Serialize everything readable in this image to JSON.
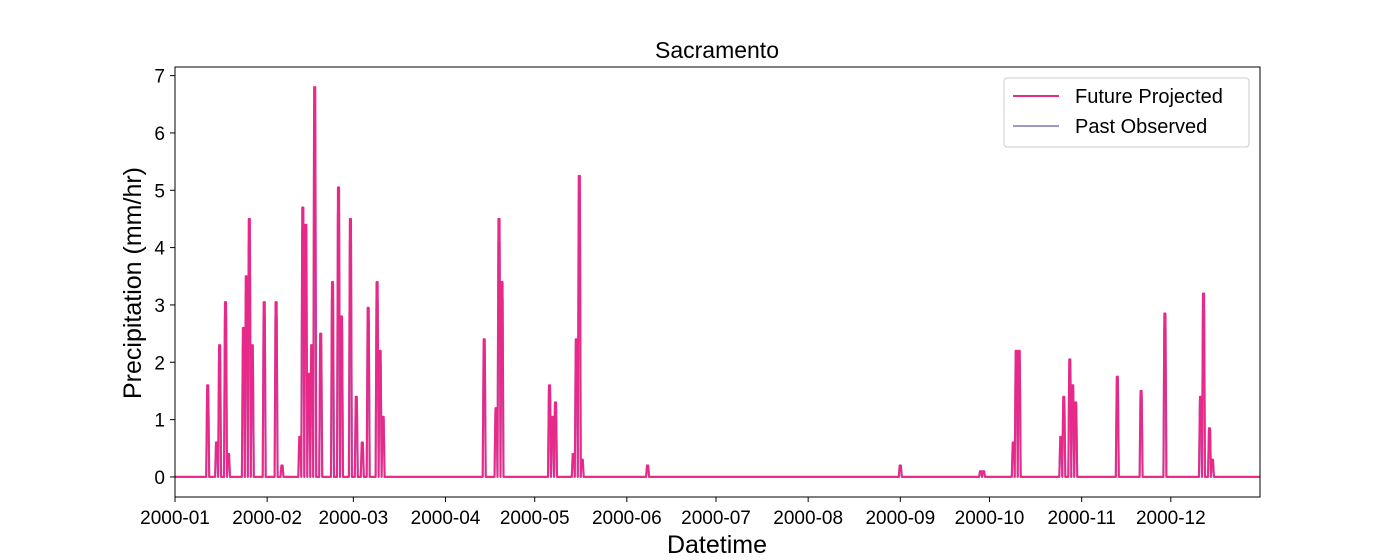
{
  "chart_data": {
    "type": "line",
    "title": "Sacramento",
    "xlabel": "Datetime",
    "ylabel": "Precipitation (mm/hr)",
    "x_range": [
      "2000-01-01",
      "2000-12-31"
    ],
    "ylim": [
      -0.35,
      7.15
    ],
    "yticks": [
      0,
      1,
      2,
      3,
      4,
      5,
      6,
      7
    ],
    "xtick_labels": [
      "2000-01",
      "2000-02",
      "2000-03",
      "2000-04",
      "2000-05",
      "2000-06",
      "2000-07",
      "2000-08",
      "2000-09",
      "2000-10",
      "2000-11",
      "2000-12"
    ],
    "legend_position": "top-right",
    "grid": false,
    "series": [
      {
        "name": "Future Projected",
        "color": "#e7298a",
        "points": [
          [
            "2000-01-12",
            1.6
          ],
          [
            "2000-01-15",
            0.6
          ],
          [
            "2000-01-16",
            2.3
          ],
          [
            "2000-01-18",
            3.05
          ],
          [
            "2000-01-19",
            0.4
          ],
          [
            "2000-01-24",
            2.6
          ],
          [
            "2000-01-25",
            3.5
          ],
          [
            "2000-01-26",
            4.5
          ],
          [
            "2000-01-27",
            2.3
          ],
          [
            "2000-01-31",
            3.05
          ],
          [
            "2000-02-04",
            3.05
          ],
          [
            "2000-02-06",
            0.2
          ],
          [
            "2000-02-12",
            0.7
          ],
          [
            "2000-02-13",
            4.7
          ],
          [
            "2000-02-14",
            4.4
          ],
          [
            "2000-02-15",
            1.8
          ],
          [
            "2000-02-16",
            2.3
          ],
          [
            "2000-02-17",
            6.8
          ],
          [
            "2000-02-19",
            2.5
          ],
          [
            "2000-02-23",
            3.4
          ],
          [
            "2000-02-25",
            5.05
          ],
          [
            "2000-02-26",
            2.8
          ],
          [
            "2000-02-29",
            4.5
          ],
          [
            "2000-03-02",
            1.4
          ],
          [
            "2000-03-04",
            0.6
          ],
          [
            "2000-03-06",
            2.95
          ],
          [
            "2000-03-09",
            3.4
          ],
          [
            "2000-03-10",
            2.2
          ],
          [
            "2000-03-11",
            1.05
          ],
          [
            "2000-04-14",
            2.4
          ],
          [
            "2000-04-18",
            1.2
          ],
          [
            "2000-04-19",
            4.5
          ],
          [
            "2000-04-20",
            3.4
          ],
          [
            "2000-05-06",
            1.6
          ],
          [
            "2000-05-07",
            1.05
          ],
          [
            "2000-05-08",
            1.3
          ],
          [
            "2000-05-14",
            0.4
          ],
          [
            "2000-05-15",
            2.4
          ],
          [
            "2000-05-16",
            5.25
          ],
          [
            "2000-05-17",
            0.3
          ],
          [
            "2000-06-08",
            0.2
          ],
          [
            "2000-09-01",
            0.2
          ],
          [
            "2000-09-28",
            0.1
          ],
          [
            "2000-09-29",
            0.1
          ],
          [
            "2000-10-09",
            0.6
          ],
          [
            "2000-10-10",
            2.2
          ],
          [
            "2000-10-11",
            2.2
          ],
          [
            "2000-10-25",
            0.7
          ],
          [
            "2000-10-26",
            1.4
          ],
          [
            "2000-10-28",
            2.05
          ],
          [
            "2000-10-29",
            1.6
          ],
          [
            "2000-10-30",
            1.3
          ],
          [
            "2000-11-13",
            1.75
          ],
          [
            "2000-11-21",
            1.5
          ],
          [
            "2000-11-29",
            2.85
          ],
          [
            "2000-12-11",
            1.4
          ],
          [
            "2000-12-12",
            3.2
          ],
          [
            "2000-12-14",
            0.85
          ],
          [
            "2000-12-15",
            0.3
          ]
        ]
      },
      {
        "name": "Past Observed",
        "color": "#9e9ac8",
        "points": [
          [
            "2000-01-12",
            1.4
          ],
          [
            "2000-01-15",
            0.6
          ],
          [
            "2000-01-16",
            2.0
          ],
          [
            "2000-01-18",
            2.8
          ],
          [
            "2000-01-19",
            0.4
          ],
          [
            "2000-01-24",
            2.3
          ],
          [
            "2000-01-25",
            3.2
          ],
          [
            "2000-01-26",
            4.1
          ],
          [
            "2000-01-27",
            2.1
          ],
          [
            "2000-01-31",
            2.8
          ],
          [
            "2000-02-04",
            2.8
          ],
          [
            "2000-02-06",
            0.2
          ],
          [
            "2000-02-12",
            0.6
          ],
          [
            "2000-02-13",
            4.3
          ],
          [
            "2000-02-14",
            4.0
          ],
          [
            "2000-02-15",
            1.7
          ],
          [
            "2000-02-16",
            2.1
          ],
          [
            "2000-02-17",
            6.2
          ],
          [
            "2000-02-19",
            2.3
          ],
          [
            "2000-02-23",
            3.1
          ],
          [
            "2000-02-25",
            4.6
          ],
          [
            "2000-02-26",
            2.6
          ],
          [
            "2000-02-29",
            4.1
          ],
          [
            "2000-03-02",
            1.3
          ],
          [
            "2000-03-04",
            0.6
          ],
          [
            "2000-03-06",
            2.7
          ],
          [
            "2000-03-09",
            3.1
          ],
          [
            "2000-03-10",
            2.0
          ],
          [
            "2000-03-11",
            1.0
          ],
          [
            "2000-04-14",
            2.2
          ],
          [
            "2000-04-18",
            1.1
          ],
          [
            "2000-04-19",
            4.1
          ],
          [
            "2000-04-20",
            3.1
          ],
          [
            "2000-05-06",
            1.5
          ],
          [
            "2000-05-07",
            1.0
          ],
          [
            "2000-05-08",
            1.2
          ],
          [
            "2000-05-14",
            0.4
          ],
          [
            "2000-05-15",
            2.2
          ],
          [
            "2000-05-16",
            4.8
          ],
          [
            "2000-05-17",
            0.3
          ],
          [
            "2000-06-08",
            0.2
          ],
          [
            "2000-09-01",
            0.2
          ],
          [
            "2000-09-28",
            0.1
          ],
          [
            "2000-09-29",
            0.1
          ],
          [
            "2000-10-09",
            0.6
          ],
          [
            "2000-10-10",
            2.0
          ],
          [
            "2000-10-11",
            2.0
          ],
          [
            "2000-10-25",
            0.6
          ],
          [
            "2000-10-26",
            1.3
          ],
          [
            "2000-10-28",
            1.9
          ],
          [
            "2000-10-29",
            1.5
          ],
          [
            "2000-10-30",
            1.2
          ],
          [
            "2000-11-13",
            1.6
          ],
          [
            "2000-11-21",
            1.4
          ],
          [
            "2000-11-29",
            2.6
          ],
          [
            "2000-12-11",
            1.3
          ],
          [
            "2000-12-12",
            2.9
          ],
          [
            "2000-12-14",
            0.8
          ],
          [
            "2000-12-15",
            0.3
          ]
        ]
      }
    ]
  }
}
